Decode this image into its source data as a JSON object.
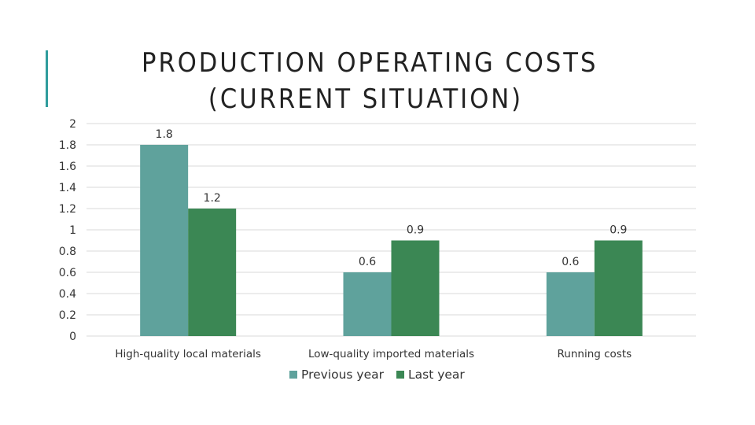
{
  "slide": {
    "title_line1": "PRODUCTION OPERATING COSTS",
    "title_line2": "(CURRENT SITUATION)"
  },
  "colors": {
    "accent": "#2f9c9c",
    "gridline": "#d9d9d9",
    "text": "#333333"
  },
  "chart_data": {
    "type": "bar",
    "title": "PRODUCTION OPERATING COSTS (CURRENT SITUATION)",
    "categories": [
      "High-quality local materials",
      "Low-quality imported materials",
      "Running costs"
    ],
    "series": [
      {
        "name": "Previous year",
        "values": [
          1.8,
          0.6,
          0.6
        ],
        "color": "#5fa29c"
      },
      {
        "name": "Last year",
        "values": [
          1.2,
          0.9,
          0.9
        ],
        "color": "#3b8754"
      }
    ],
    "ylim": [
      0,
      2
    ],
    "yticks": [
      "0",
      "0.2",
      "0.4",
      "0.6",
      "0.8",
      "1",
      "1.2",
      "1.4",
      "1.6",
      "1.8",
      "2"
    ],
    "grid": true,
    "legend_position": "bottom",
    "xlabel": "",
    "ylabel": ""
  }
}
